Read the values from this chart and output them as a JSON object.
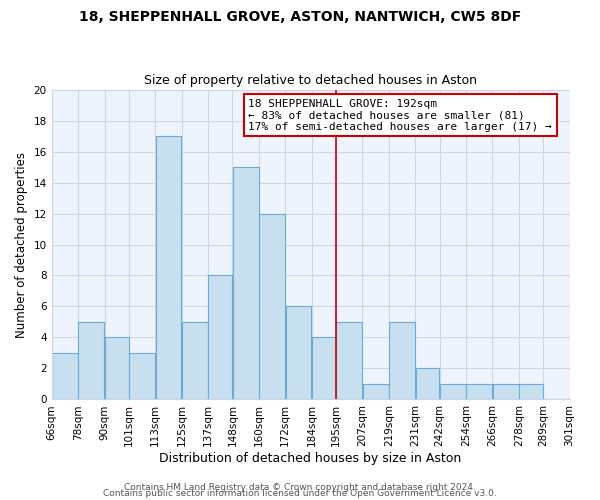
{
  "title": "18, SHEPPENHALL GROVE, ASTON, NANTWICH, CW5 8DF",
  "subtitle": "Size of property relative to detached houses in Aston",
  "xlabel": "Distribution of detached houses by size in Aston",
  "ylabel": "Number of detached properties",
  "bar_color": "#c8dff0",
  "bar_edgecolor": "#6aaad4",
  "grid_color": "#c8d8e8",
  "bg_color": "#eef4fb",
  "bin_labels": [
    "66sqm",
    "78sqm",
    "90sqm",
    "101sqm",
    "113sqm",
    "125sqm",
    "137sqm",
    "148sqm",
    "160sqm",
    "172sqm",
    "184sqm",
    "195sqm",
    "207sqm",
    "219sqm",
    "231sqm",
    "242sqm",
    "254sqm",
    "266sqm",
    "278sqm",
    "289sqm",
    "301sqm"
  ],
  "bin_edges": [
    66,
    78,
    90,
    101,
    113,
    125,
    137,
    148,
    160,
    172,
    184,
    195,
    207,
    219,
    231,
    242,
    254,
    266,
    278,
    289,
    301
  ],
  "counts": [
    3,
    5,
    4,
    3,
    17,
    5,
    8,
    15,
    12,
    6,
    4,
    5,
    1,
    5,
    2,
    1,
    1,
    1,
    1,
    0
  ],
  "vline_x": 195,
  "vline_color": "#cc0000",
  "annotation_title": "18 SHEPPENHALL GROVE: 192sqm",
  "annotation_line1": "← 83% of detached houses are smaller (81)",
  "annotation_line2": "17% of semi-detached houses are larger (17) →",
  "annotation_box_color": "#ffffff",
  "annotation_box_edgecolor": "#cc0000",
  "ylim": [
    0,
    20
  ],
  "yticks": [
    0,
    2,
    4,
    6,
    8,
    10,
    12,
    14,
    16,
    18,
    20
  ],
  "footer1": "Contains HM Land Registry data © Crown copyright and database right 2024.",
  "footer2": "Contains public sector information licensed under the Open Government Licence v3.0.",
  "title_fontsize": 10,
  "subtitle_fontsize": 9,
  "xlabel_fontsize": 9,
  "ylabel_fontsize": 8.5,
  "tick_fontsize": 7.5,
  "annotation_fontsize": 8,
  "footer_fontsize": 6.5
}
